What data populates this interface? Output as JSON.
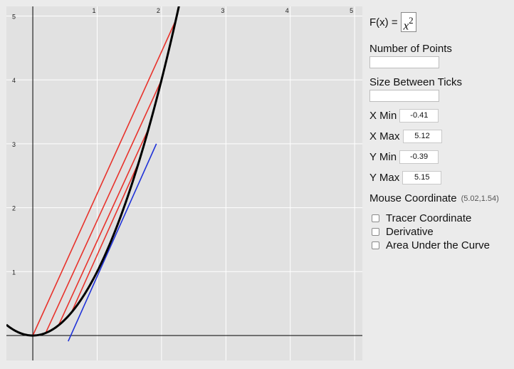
{
  "formula": {
    "label": "F(x) =",
    "base": "x",
    "exponent": "2"
  },
  "number_of_points": {
    "label": "Number of Points",
    "value": ""
  },
  "size_between_ticks": {
    "label": "Size Between Ticks",
    "value": ""
  },
  "x_min": {
    "label": "X Min",
    "value": "-0.41"
  },
  "x_max": {
    "label": "X Max",
    "value": "5.12"
  },
  "y_min": {
    "label": "Y Min",
    "value": "-0.39"
  },
  "y_max": {
    "label": "Y Max",
    "value": "5.15"
  },
  "mouse": {
    "label": "Mouse Coordinate",
    "value": "(5.02,1.54)"
  },
  "checkboxes": [
    {
      "label": "Tracer Coordinate",
      "checked": false
    },
    {
      "label": "Derivative",
      "checked": false
    },
    {
      "label": "Area Under the Curve",
      "checked": false
    }
  ],
  "colors": {
    "curve": "#000000",
    "secant": "#e8322b",
    "tangent": "#1f32d8",
    "grid": "#ffffff",
    "plot_bg": "#e1e1e1"
  },
  "chart_data": {
    "type": "line",
    "function": "x^2",
    "xlim": [
      -0.41,
      5.12
    ],
    "ylim": [
      -0.39,
      5.15
    ],
    "x_ticks": [
      "1",
      "2",
      "3",
      "4",
      "5"
    ],
    "y_ticks": [
      "1",
      "2",
      "3",
      "4",
      "5"
    ],
    "grid": true,
    "series": [
      {
        "role": "curve",
        "x": [
          -0.41,
          0,
          0.5,
          1,
          1.5,
          2,
          2.25
        ],
        "y": [
          0.168,
          0,
          0.25,
          1,
          2.25,
          4,
          5.06
        ]
      },
      {
        "role": "secant",
        "x": [
          0,
          2.22
        ],
        "y": [
          0,
          4.93
        ]
      },
      {
        "role": "secant",
        "x": [
          0.2,
          2.0
        ],
        "y": [
          0.04,
          4.0
        ]
      },
      {
        "role": "secant",
        "x": [
          0.4,
          1.8
        ],
        "y": [
          0.16,
          3.24
        ]
      },
      {
        "role": "secant",
        "x": [
          0.6,
          1.65
        ],
        "y": [
          0.36,
          2.72
        ]
      },
      {
        "role": "tangent",
        "x": [
          0.55,
          1.92
        ],
        "y": [
          -0.09,
          3.0
        ]
      }
    ]
  }
}
